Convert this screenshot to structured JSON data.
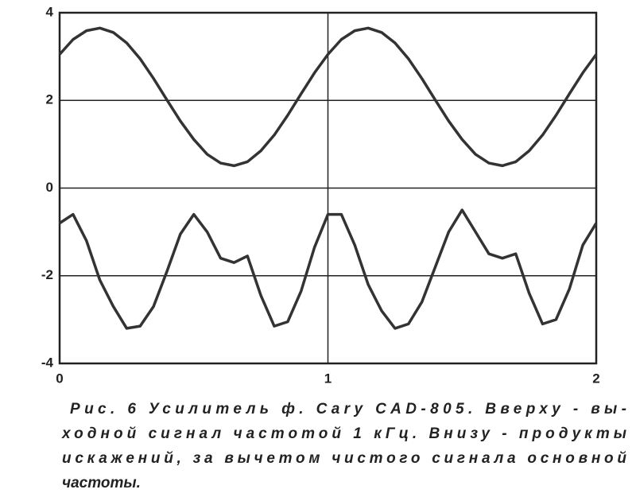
{
  "chart_data": {
    "type": "line",
    "x": [
      0,
      0.05,
      0.1,
      0.15,
      0.2,
      0.25,
      0.3,
      0.35,
      0.4,
      0.45,
      0.5,
      0.55,
      0.6,
      0.65,
      0.7,
      0.75,
      0.8,
      0.85,
      0.9,
      0.95,
      1,
      1.05,
      1.1,
      1.15,
      1.2,
      1.25,
      1.3,
      1.35,
      1.4,
      1.45,
      1.5,
      1.55,
      1.6,
      1.65,
      1.7,
      1.75,
      1.8,
      1.85,
      1.9,
      1.95,
      2
    ],
    "series": [
      {
        "color": "#333333",
        "values": [
          3.05,
          3.39,
          3.59,
          3.65,
          3.55,
          3.31,
          2.95,
          2.5,
          2.01,
          1.53,
          1.11,
          0.77,
          0.57,
          0.51,
          0.6,
          0.85,
          1.21,
          1.66,
          2.15,
          2.63,
          3.05,
          3.39,
          3.59,
          3.65,
          3.55,
          3.31,
          2.95,
          2.5,
          2.01,
          1.53,
          1.11,
          0.77,
          0.57,
          0.51,
          0.6,
          0.85,
          1.21,
          1.66,
          2.15,
          2.63,
          3.05
        ]
      },
      {
        "color": "#333333",
        "values": [
          -0.8,
          -0.6,
          -1.2,
          -2.1,
          -2.7,
          -3.2,
          -3.15,
          -2.7,
          -1.9,
          -1.05,
          -0.6,
          -1.0,
          -1.6,
          -1.7,
          -1.55,
          -2.45,
          -3.15,
          -3.05,
          -2.35,
          -1.35,
          -0.6,
          -0.6,
          -1.3,
          -2.2,
          -2.8,
          -3.2,
          -3.1,
          -2.6,
          -1.8,
          -1.0,
          -0.5,
          -1.0,
          -1.5,
          -1.6,
          -1.5,
          -2.4,
          -3.1,
          -3.0,
          -2.3,
          -1.3,
          -0.8
        ]
      }
    ],
    "xlim": [
      0,
      2
    ],
    "xticks": [
      0,
      1,
      2
    ],
    "ylim": [
      -4,
      4
    ],
    "yticks": [
      -4,
      -2,
      0,
      2,
      4
    ],
    "grid": true
  },
  "caption": [
    "Рис. 6  Усилитель ф. Cary CAD-805. Вверху - вы-",
    "ходной сигнал частотой 1 кГц. Внизу - продукты",
    "искажений, за вычетом чистого сигнала основной",
    "частоты."
  ]
}
